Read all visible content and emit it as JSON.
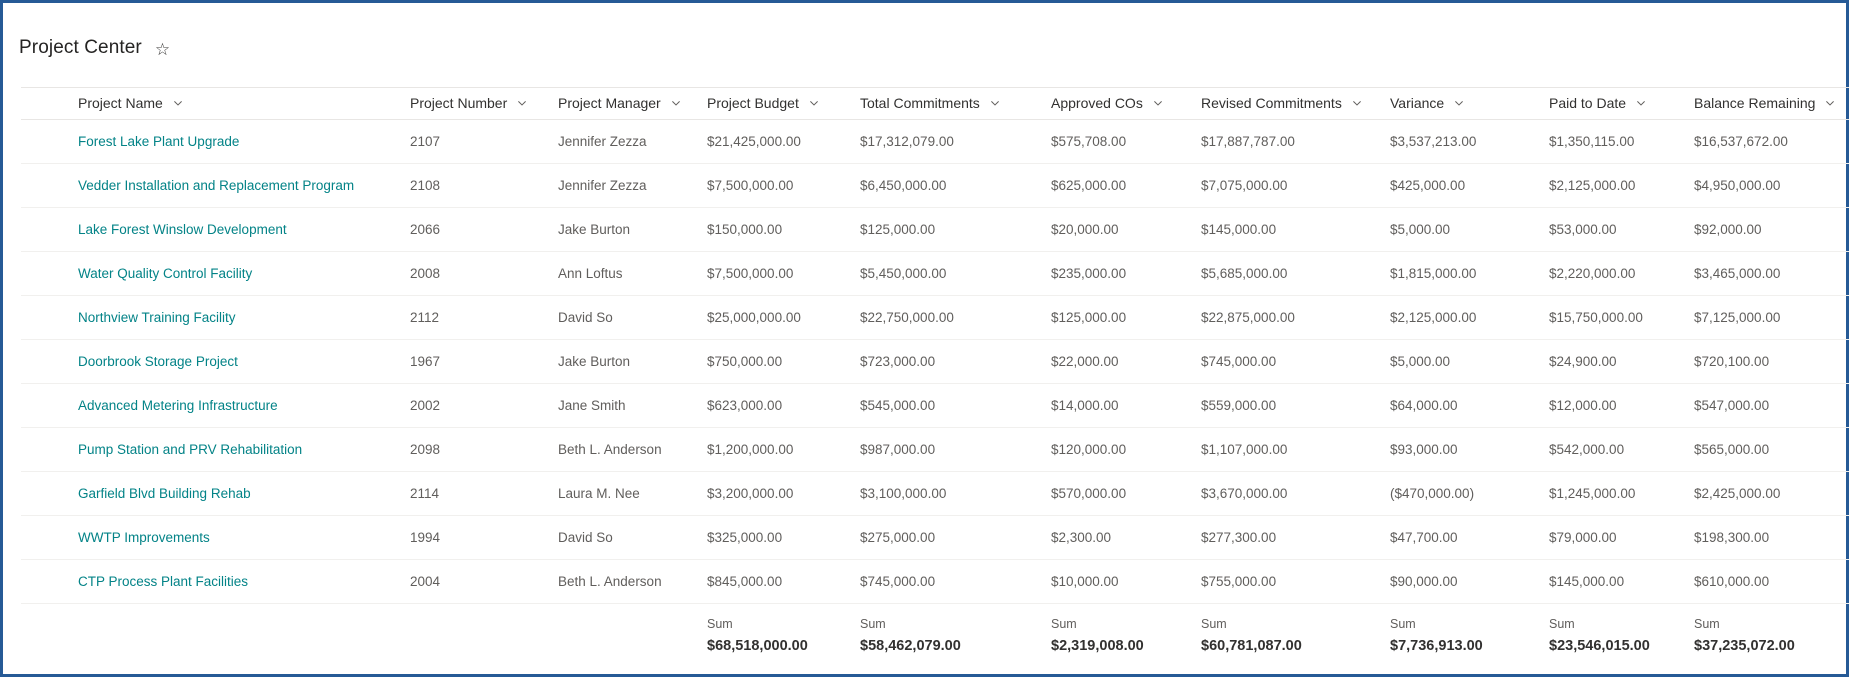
{
  "page": {
    "title": "Project Center",
    "favorite_icon": "star-outline-icon"
  },
  "colors": {
    "page_border_blue": "#265a96",
    "link_teal": "#038387",
    "header_text": "#323130",
    "cell_text": "#605e5c"
  },
  "table": {
    "sum_label": "Sum",
    "columns": [
      {
        "key": "name",
        "label": "Project Name"
      },
      {
        "key": "number",
        "label": "Project Number"
      },
      {
        "key": "manager",
        "label": "Project Manager"
      },
      {
        "key": "budget",
        "label": "Project Budget"
      },
      {
        "key": "total_commitments",
        "label": "Total Commitments"
      },
      {
        "key": "approved_cos",
        "label": "Approved COs"
      },
      {
        "key": "revised_commitments",
        "label": "Revised Commitments"
      },
      {
        "key": "variance",
        "label": "Variance"
      },
      {
        "key": "paid_to_date",
        "label": "Paid to Date"
      },
      {
        "key": "balance_remaining",
        "label": "Balance Remaining"
      }
    ],
    "rows": [
      {
        "name": "Forest Lake Plant Upgrade",
        "number": "2107",
        "manager": "Jennifer Zezza",
        "budget": "$21,425,000.00",
        "total_commitments": "$17,312,079.00",
        "approved_cos": "$575,708.00",
        "revised_commitments": "$17,887,787.00",
        "variance": "$3,537,213.00",
        "paid_to_date": "$1,350,115.00",
        "balance_remaining": "$16,537,672.00"
      },
      {
        "name": "Vedder Installation and Replacement Program",
        "number": "2108",
        "manager": "Jennifer Zezza",
        "budget": "$7,500,000.00",
        "total_commitments": "$6,450,000.00",
        "approved_cos": "$625,000.00",
        "revised_commitments": "$7,075,000.00",
        "variance": "$425,000.00",
        "paid_to_date": "$2,125,000.00",
        "balance_remaining": "$4,950,000.00"
      },
      {
        "name": "Lake Forest Winslow Development",
        "number": "2066",
        "manager": "Jake Burton",
        "budget": "$150,000.00",
        "total_commitments": "$125,000.00",
        "approved_cos": "$20,000.00",
        "revised_commitments": "$145,000.00",
        "variance": "$5,000.00",
        "paid_to_date": "$53,000.00",
        "balance_remaining": "$92,000.00"
      },
      {
        "name": "Water Quality Control Facility",
        "number": "2008",
        "manager": "Ann Loftus",
        "budget": "$7,500,000.00",
        "total_commitments": "$5,450,000.00",
        "approved_cos": "$235,000.00",
        "revised_commitments": "$5,685,000.00",
        "variance": "$1,815,000.00",
        "paid_to_date": "$2,220,000.00",
        "balance_remaining": "$3,465,000.00"
      },
      {
        "name": "Northview Training Facility",
        "number": "2112",
        "manager": "David So",
        "budget": "$25,000,000.00",
        "total_commitments": "$22,750,000.00",
        "approved_cos": "$125,000.00",
        "revised_commitments": "$22,875,000.00",
        "variance": "$2,125,000.00",
        "paid_to_date": "$15,750,000.00",
        "balance_remaining": "$7,125,000.00"
      },
      {
        "name": "Doorbrook Storage Project",
        "number": "1967",
        "manager": "Jake Burton",
        "budget": "$750,000.00",
        "total_commitments": "$723,000.00",
        "approved_cos": "$22,000.00",
        "revised_commitments": "$745,000.00",
        "variance": "$5,000.00",
        "paid_to_date": "$24,900.00",
        "balance_remaining": "$720,100.00"
      },
      {
        "name": "Advanced Metering Infrastructure",
        "number": "2002",
        "manager": "Jane Smith",
        "budget": "$623,000.00",
        "total_commitments": "$545,000.00",
        "approved_cos": "$14,000.00",
        "revised_commitments": "$559,000.00",
        "variance": "$64,000.00",
        "paid_to_date": "$12,000.00",
        "balance_remaining": "$547,000.00"
      },
      {
        "name": "Pump Station and PRV Rehabilitation",
        "number": "2098",
        "manager": "Beth L. Anderson",
        "budget": "$1,200,000.00",
        "total_commitments": "$987,000.00",
        "approved_cos": "$120,000.00",
        "revised_commitments": "$1,107,000.00",
        "variance": "$93,000.00",
        "paid_to_date": "$542,000.00",
        "balance_remaining": "$565,000.00"
      },
      {
        "name": "Garfield Blvd Building Rehab",
        "number": "2114",
        "manager": "Laura M. Nee",
        "budget": "$3,200,000.00",
        "total_commitments": "$3,100,000.00",
        "approved_cos": "$570,000.00",
        "revised_commitments": "$3,670,000.00",
        "variance": "($470,000.00)",
        "paid_to_date": "$1,245,000.00",
        "balance_remaining": "$2,425,000.00"
      },
      {
        "name": "WWTP Improvements",
        "number": "1994",
        "manager": "David So",
        "budget": "$325,000.00",
        "total_commitments": "$275,000.00",
        "approved_cos": "$2,300.00",
        "revised_commitments": "$277,300.00",
        "variance": "$47,700.00",
        "paid_to_date": "$79,000.00",
        "balance_remaining": "$198,300.00"
      },
      {
        "name": "CTP Process Plant Facilities",
        "number": "2004",
        "manager": "Beth L. Anderson",
        "budget": "$845,000.00",
        "total_commitments": "$745,000.00",
        "approved_cos": "$10,000.00",
        "revised_commitments": "$755,000.00",
        "variance": "$90,000.00",
        "paid_to_date": "$145,000.00",
        "balance_remaining": "$610,000.00"
      }
    ],
    "sums": {
      "budget": "$68,518,000.00",
      "total_commitments": "$58,462,079.00",
      "approved_cos": "$2,319,008.00",
      "revised_commitments": "$60,781,087.00",
      "variance": "$7,736,913.00",
      "paid_to_date": "$23,546,015.00",
      "balance_remaining": "$37,235,072.00"
    }
  }
}
